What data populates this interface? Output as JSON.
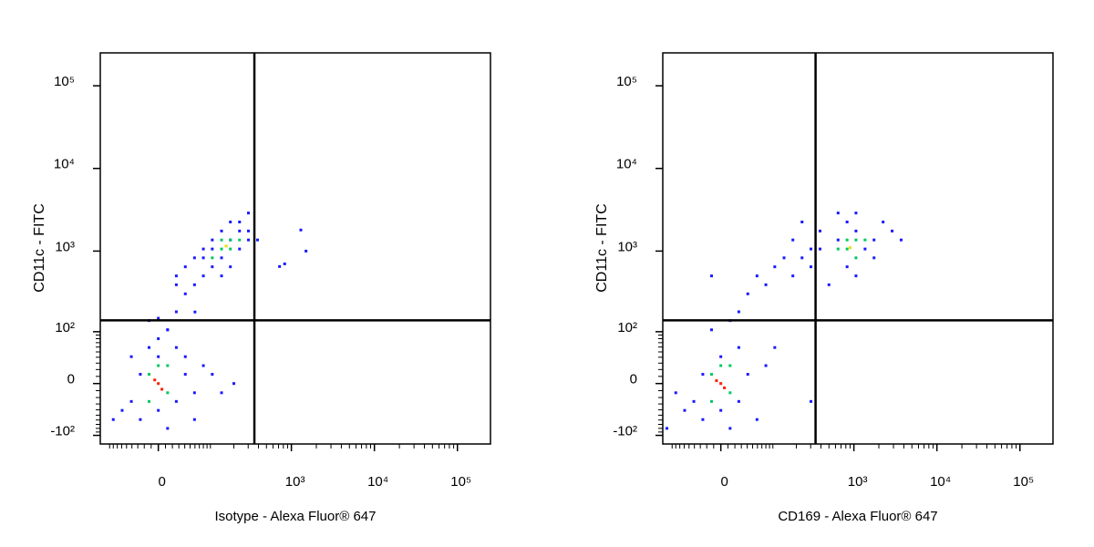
{
  "chart_data": [
    {
      "type": "scatter",
      "xlabel": "Isotype - Alexa Fluor® 647",
      "ylabel": "CD11c - FITC",
      "xscale": "biexponential",
      "yscale": "biexponential",
      "xlim": [
        -120,
        250000
      ],
      "ylim": [
        -130,
        250000
      ],
      "xticks": [
        0,
        {
          "value": 1000,
          "label": "10³"
        },
        {
          "value": 10000,
          "label": "10⁴"
        },
        {
          "value": 100000,
          "label": "10⁵"
        }
      ],
      "yticks": [
        {
          "value": -100,
          "label": "-10²"
        },
        0,
        {
          "value": 100,
          "label": "10²"
        },
        {
          "value": 1000,
          "label": "10³"
        },
        {
          "value": 10000,
          "label": "10⁴"
        },
        {
          "value": 100000,
          "label": "10⁵"
        }
      ],
      "gate": {
        "x": 357,
        "y": 141
      },
      "series": [
        {
          "color": "#1a1aff",
          "x": [
            26,
            41,
            59,
            80,
            106,
            106,
            140,
            181,
            235,
            302,
            235,
            140,
            80,
            59,
            181,
            302,
            390,
            181,
            41,
            26,
            106,
            235,
            302,
            140,
            80,
            830,
            1500,
            1300,
            720,
            60,
            0,
            13,
            -13,
            26,
            -26,
            -41,
            26,
            41,
            0,
            0,
            -13,
            59,
            -59,
            26,
            41,
            -26,
            13,
            80,
            106,
            -41,
            0,
            13,
            -80,
            59,
            140,
            200
          ],
          "values": [
            500,
            645,
            390,
            828,
            645,
            1060,
            828,
            1364,
            1060,
            1750,
            2250,
            1750,
            1060,
            828,
            2250,
            2890,
            1364,
            645,
            302,
            390,
            1364,
            1750,
            1364,
            500,
            500,
            700,
            1000,
            1800,
            650,
            180,
            150,
            106,
            140,
            181,
            13,
            -26,
            -26,
            13,
            41,
            -41,
            59,
            -13,
            -41,
            59,
            41,
            -59,
            -80,
            26,
            13,
            41,
            80,
            106,
            -59,
            -59,
            -13,
            0
          ]
        },
        {
          "color": "#00c860",
          "x": [
            140,
            181,
            106,
            181,
            235,
            140,
            -13,
            13,
            0,
            13,
            -13
          ],
          "values": [
            1060,
            1060,
            828,
            1364,
            1364,
            1364,
            13,
            -13,
            26,
            26,
            -26
          ]
        },
        {
          "color": "#e8e000",
          "x": [
            160
          ],
          "values": [
            1150
          ]
        },
        {
          "color": "#ff2000",
          "x": [
            0,
            -5,
            5
          ],
          "values": [
            0,
            5,
            -8
          ]
        }
      ]
    },
    {
      "type": "scatter",
      "xlabel": "CD169 - Alexa Fluor® 647",
      "ylabel": "CD11c - FITC",
      "xscale": "biexponential",
      "yscale": "biexponential",
      "xlim": [
        -120,
        250000
      ],
      "ylim": [
        -130,
        250000
      ],
      "xticks": [
        0,
        {
          "value": 1000,
          "label": "10³"
        },
        {
          "value": 10000,
          "label": "10⁴"
        },
        {
          "value": 100000,
          "label": "10⁵"
        }
      ],
      "yticks": [
        {
          "value": -100,
          "label": "-10²"
        },
        0,
        {
          "value": 100,
          "label": "10²"
        },
        {
          "value": 1000,
          "label": "10³"
        },
        {
          "value": 10000,
          "label": "10⁴"
        },
        {
          "value": 100000,
          "label": "10⁵"
        }
      ],
      "gate": {
        "x": 344,
        "y": 141
      },
      "series": [
        {
          "color": "#1a1aff",
          "x": [
            390,
            645,
            828,
            1060,
            1364,
            1750,
            2250,
            645,
            1060,
            390,
            302,
            235,
            181,
            140,
            106,
            59,
            41,
            80,
            26,
            13,
            -13,
            181,
            302,
            2890,
            1750,
            500,
            1060,
            3710,
            235,
            828,
            -26,
            -41,
            26,
            41,
            0,
            0,
            -59,
            26,
            -26,
            59,
            -80,
            80,
            -106,
            13,
            106,
            -13,
            302
          ],
          "values": [
            1060,
            1364,
            645,
            1750,
            1060,
            1364,
            2250,
            2890,
            2890,
            1750,
            1060,
            828,
            1364,
            828,
            645,
            500,
            302,
            390,
            181,
            140,
            500,
            500,
            645,
            1750,
            828,
            390,
            500,
            1364,
            2250,
            2250,
            13,
            -26,
            -26,
            13,
            41,
            -41,
            -41,
            59,
            -59,
            -59,
            -13,
            26,
            -80,
            -80,
            59,
            106,
            -26
          ]
        },
        {
          "color": "#00c860",
          "x": [
            828,
            1060,
            645,
            1364,
            828,
            1060,
            -13,
            13,
            0,
            -13,
            13
          ],
          "values": [
            1060,
            1364,
            1060,
            1364,
            1364,
            828,
            13,
            -13,
            26,
            -26,
            26
          ]
        },
        {
          "color": "#e8e000",
          "x": [
            900
          ],
          "values": [
            1100
          ]
        },
        {
          "color": "#ff2000",
          "x": [
            0,
            -6,
            5
          ],
          "values": [
            0,
            4,
            -6
          ]
        }
      ]
    }
  ]
}
